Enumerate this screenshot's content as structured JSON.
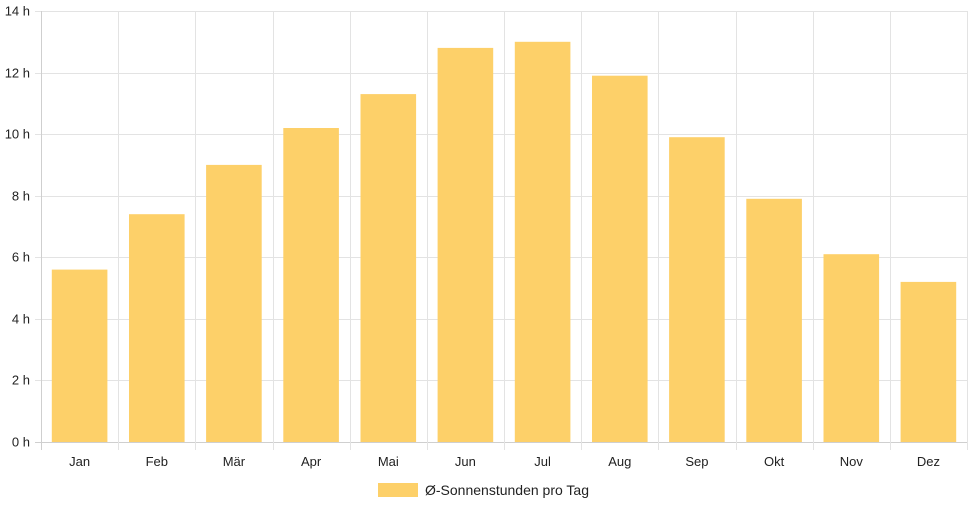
{
  "chart_data": {
    "type": "bar",
    "categories": [
      "Jan",
      "Feb",
      "Mär",
      "Apr",
      "Mai",
      "Jun",
      "Jul",
      "Aug",
      "Sep",
      "Okt",
      "Nov",
      "Dez"
    ],
    "series": [
      {
        "name": "Ø-Sonnenstunden pro Tag",
        "values": [
          5.6,
          7.4,
          9.0,
          10.2,
          11.3,
          12.8,
          13.0,
          11.9,
          9.9,
          7.9,
          6.1,
          5.2
        ],
        "color": "#fdd069"
      }
    ],
    "y_ticks": [
      "0 h",
      "2 h",
      "4 h",
      "6 h",
      "8 h",
      "10 h",
      "12 h",
      "14 h"
    ],
    "ylim": [
      0,
      14
    ],
    "grid": true,
    "legend_position": "bottom"
  }
}
